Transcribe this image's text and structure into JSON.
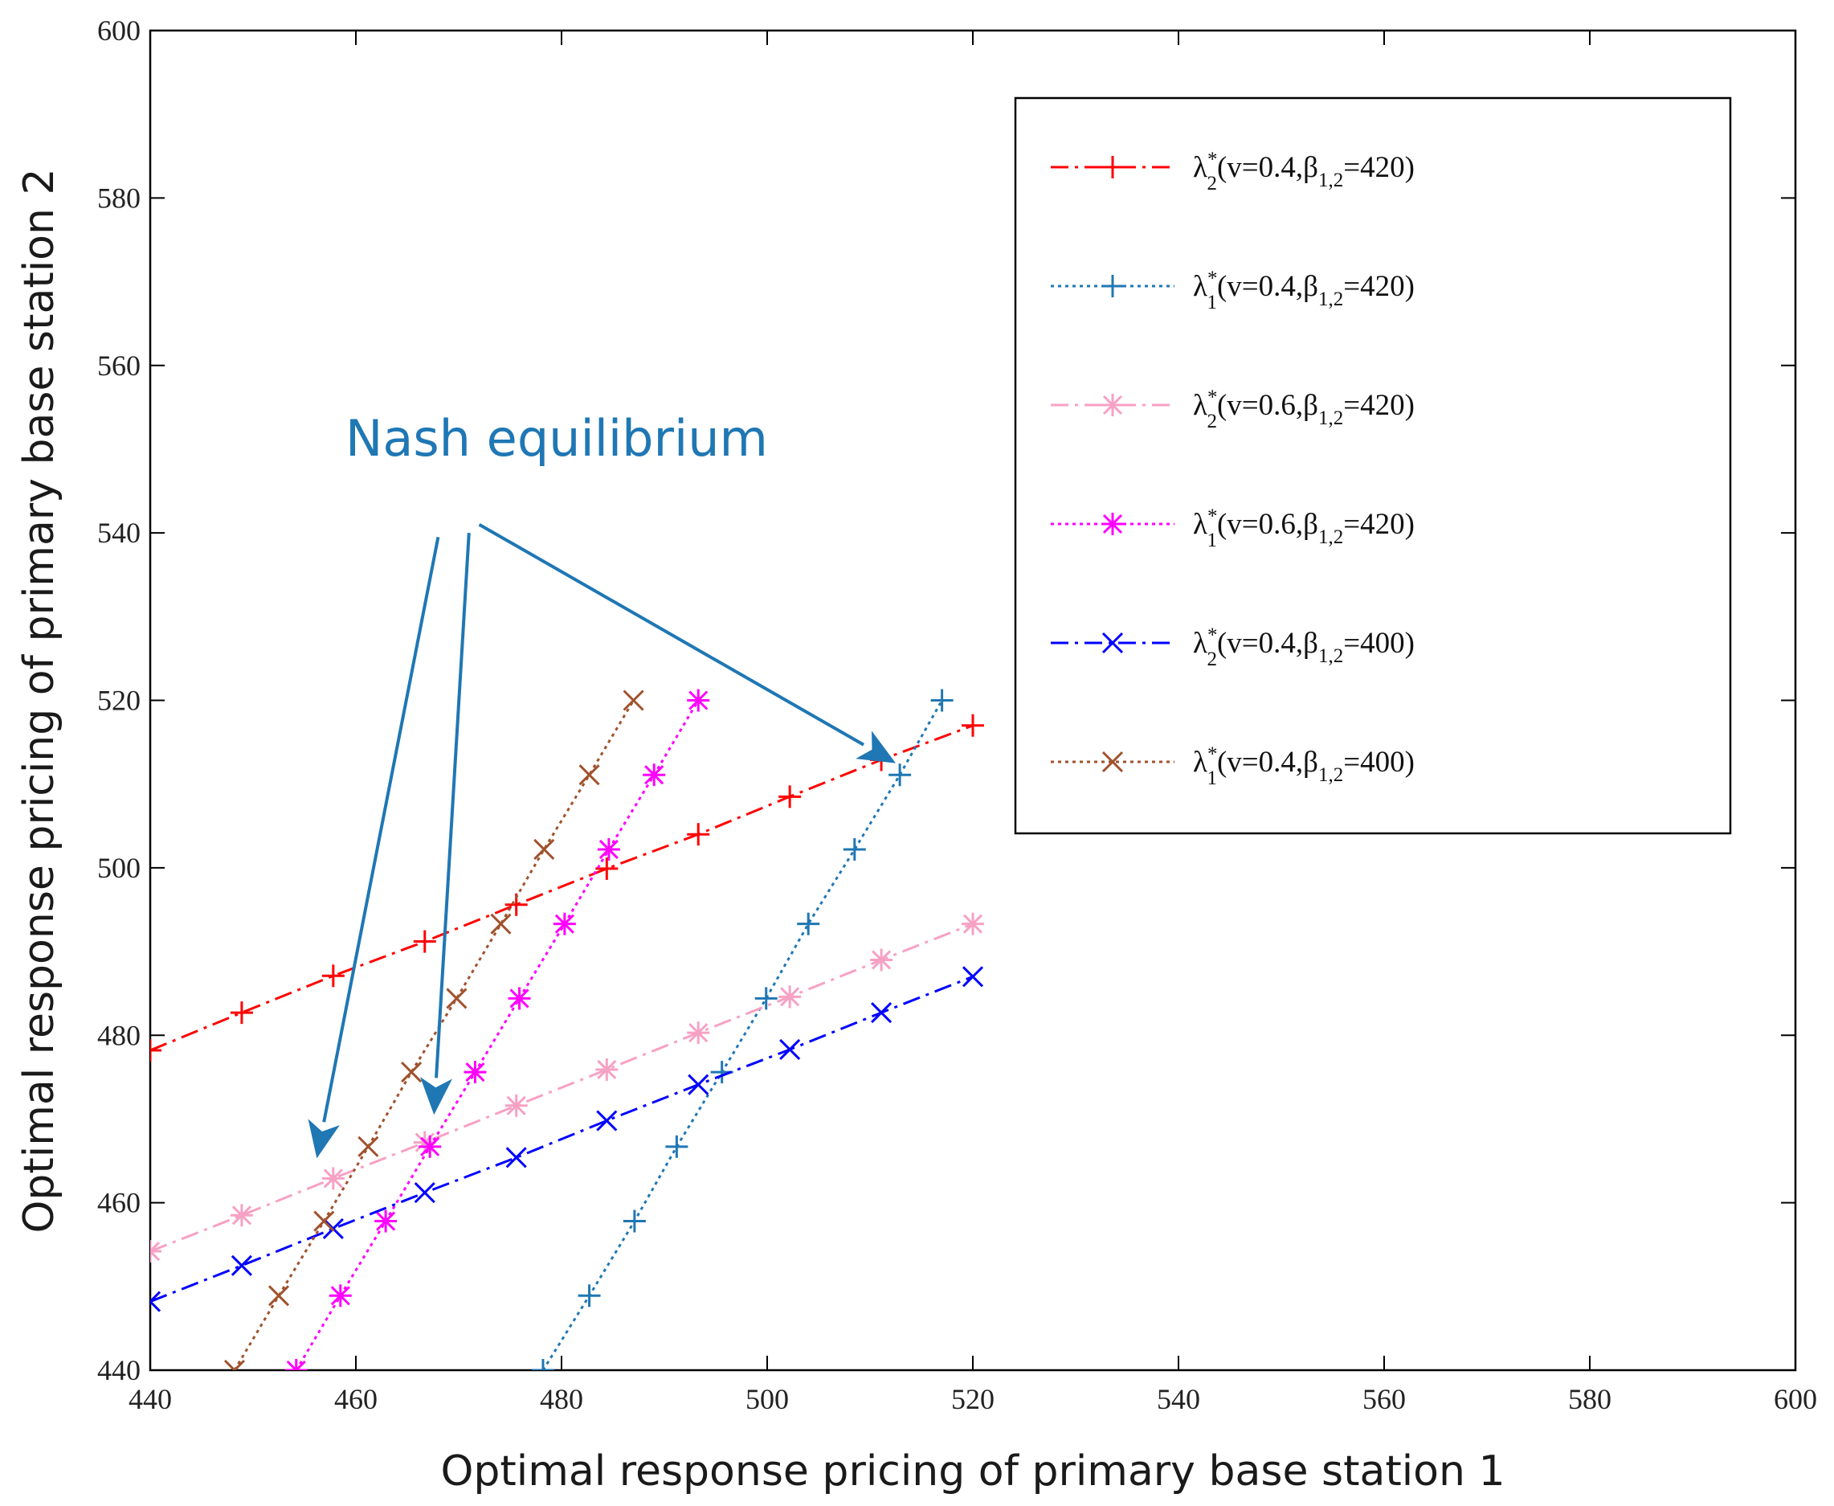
{
  "chart_data": {
    "type": "line",
    "title": "",
    "xlabel": "Optimal response pricing of primary base station 1",
    "ylabel": "Optimal response pricing of primary base station 2",
    "xlim": [
      440,
      600
    ],
    "ylim": [
      440,
      600
    ],
    "xticks": [
      "440",
      "460",
      "480",
      "500",
      "520",
      "540",
      "560",
      "580",
      "600"
    ],
    "yticks": [
      "440",
      "460",
      "480",
      "500",
      "520",
      "540",
      "560",
      "580",
      "600"
    ],
    "grid": false,
    "legend_position": "top-right",
    "series": [
      {
        "name": "λ2*(v=0.4,β1,2=420)",
        "legend": {
          "sym": "λ",
          "sub": "2",
          "sup": "*",
          "pre": "(v=0.4,β",
          "psub": "1,2",
          "post": "=420)"
        },
        "color": "#ff0000",
        "dash": "22 8 4 8",
        "marker": "plus",
        "x": [
          440,
          448.9,
          457.8,
          466.7,
          475.6,
          484.4,
          493.3,
          502.2,
          511.1,
          520
        ],
        "y": [
          478.2,
          482.7,
          487.1,
          491.2,
          495.6,
          499.9,
          504.0,
          508.5,
          512.9,
          517.0
        ]
      },
      {
        "name": "λ1*(v=0.4,β1,2=420)",
        "legend": {
          "sym": "λ",
          "sub": "1",
          "sup": "*",
          "pre": "(v=0.4,β",
          "psub": "1,2",
          "post": "=420)"
        },
        "color": "#1f77b4",
        "dash": "4 5",
        "marker": "plus",
        "x": [
          478.2,
          482.7,
          487.1,
          491.2,
          495.6,
          499.9,
          504.0,
          508.5,
          512.9,
          517.0
        ],
        "y": [
          440,
          448.9,
          457.8,
          466.7,
          475.6,
          484.4,
          493.3,
          502.2,
          511.1,
          520
        ]
      },
      {
        "name": "λ2*(v=0.6,β1,2=420)",
        "legend": {
          "sym": "λ",
          "sub": "2",
          "sup": "*",
          "pre": "(v=0.6,β",
          "psub": "1,2",
          "post": "=420)"
        },
        "color": "#f7a1c4",
        "dash": "22 8 4 8",
        "marker": "star",
        "x": [
          440,
          448.9,
          457.8,
          466.7,
          475.6,
          484.4,
          493.3,
          502.2,
          511.1,
          520
        ],
        "y": [
          454.2,
          458.5,
          462.9,
          467.2,
          471.6,
          475.9,
          480.3,
          484.6,
          489.0,
          493.3
        ]
      },
      {
        "name": "λ1*(v=0.6,β1,2=420)",
        "legend": {
          "sym": "λ",
          "sub": "1",
          "sup": "*",
          "pre": "(v=0.6,β",
          "psub": "1,2",
          "post": "=420)"
        },
        "color": "#ff00ff",
        "dash": "4 5",
        "marker": "star",
        "x": [
          454.2,
          458.5,
          462.9,
          467.2,
          471.6,
          475.9,
          480.3,
          484.6,
          489.0,
          493.3
        ],
        "y": [
          440,
          448.9,
          457.8,
          466.7,
          475.6,
          484.4,
          493.3,
          502.2,
          511.1,
          520
        ]
      },
      {
        "name": "λ2*(v=0.4,β1,2=400)",
        "legend": {
          "sym": "λ",
          "sub": "2",
          "sup": "*",
          "pre": "(v=0.4,β",
          "psub": "1,2",
          "post": "=400)"
        },
        "color": "#0000ff",
        "dash": "22 8 4 8",
        "marker": "x",
        "x": [
          440,
          448.9,
          457.8,
          466.7,
          475.6,
          484.4,
          493.3,
          502.2,
          511.1,
          520
        ],
        "y": [
          448.2,
          452.5,
          456.9,
          461.2,
          465.4,
          469.8,
          474.1,
          478.3,
          482.7,
          487.0
        ]
      },
      {
        "name": "λ1*(v=0.4,β1,2=400)",
        "legend": {
          "sym": "λ",
          "sub": "1",
          "sup": "*",
          "pre": "(v=0.4,β",
          "psub": "1,2",
          "post": "=400)"
        },
        "color": "#a0522d",
        "dash": "4 5",
        "marker": "x",
        "x": [
          448.2,
          452.5,
          456.9,
          461.2,
          465.4,
          469.8,
          474.1,
          478.3,
          482.7,
          487.0
        ],
        "y": [
          440,
          448.9,
          457.8,
          466.7,
          475.6,
          484.4,
          493.3,
          502.2,
          511.1,
          520
        ]
      }
    ],
    "annotation": {
      "text": "Nash equilibrium",
      "color": "#1f77b4",
      "arrows": [
        {
          "from": [
            468.0,
            539.5
          ],
          "to": [
            456.2,
            465.3
          ]
        },
        {
          "from": [
            471.0,
            540.0
          ],
          "to": [
            467.6,
            470.5
          ]
        },
        {
          "from": [
            472.0,
            541.0
          ],
          "to": [
            512.5,
            512.5
          ]
        }
      ]
    }
  }
}
